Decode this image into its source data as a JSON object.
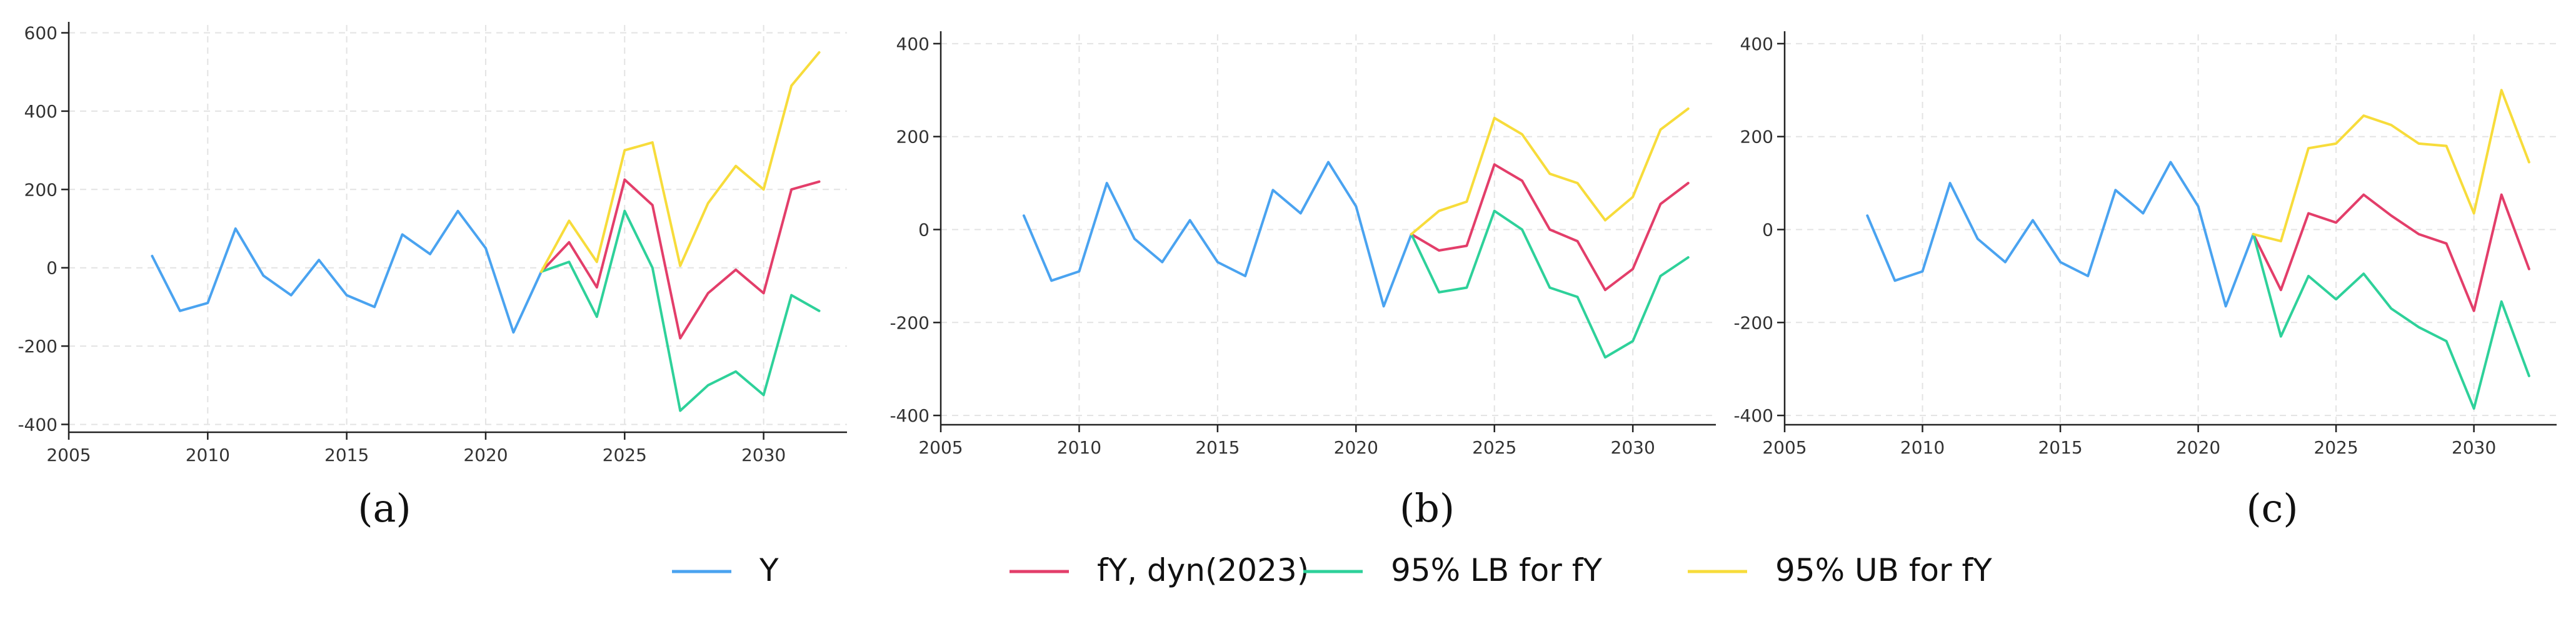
{
  "legend": [
    {
      "label": "Y",
      "color": "#4aa3f0"
    },
    {
      "label": "fY, dyn(2023)",
      "color": "#e33e6a"
    },
    {
      "label": "95% LB for fY",
      "color": "#2ed19a"
    },
    {
      "label": "95% UB for fY",
      "color": "#f7dc3b"
    }
  ],
  "chart_data": [
    {
      "type": "line",
      "caption": "(a)",
      "xlim": [
        2005,
        2033
      ],
      "ylim": [
        -420,
        620
      ],
      "x_ticks": [
        "2005",
        "2010",
        "2015",
        "2020",
        "2025",
        "2030"
      ],
      "y_ticks": [
        "-400",
        "-200",
        "0",
        "200",
        "400",
        "600"
      ],
      "grid": true,
      "series": [
        {
          "name": "Y",
          "color": "#4aa3f0",
          "x": [
            2008,
            2009,
            2010,
            2011,
            2012,
            2013,
            2014,
            2015,
            2016,
            2017,
            2018,
            2019,
            2020,
            2021,
            2022
          ],
          "y": [
            30,
            -110,
            -90,
            100,
            -20,
            -70,
            20,
            -70,
            -100,
            85,
            35,
            145,
            50,
            -165,
            -10
          ]
        },
        {
          "name": "fY, dyn(2023)",
          "color": "#e33e6a",
          "x": [
            2022,
            2023,
            2024,
            2025,
            2026,
            2027,
            2028,
            2029,
            2030,
            2031,
            2032
          ],
          "y": [
            -10,
            65,
            -50,
            225,
            160,
            -180,
            -65,
            -5,
            -65,
            200,
            220
          ]
        },
        {
          "name": "95% LB for fY",
          "color": "#2ed19a",
          "x": [
            2022,
            2023,
            2024,
            2025,
            2026,
            2027,
            2028,
            2029,
            2030,
            2031,
            2032
          ],
          "y": [
            -10,
            15,
            -125,
            145,
            0,
            -365,
            -300,
            -265,
            -325,
            -70,
            -110
          ]
        },
        {
          "name": "95% UB for fY",
          "color": "#f7dc3b",
          "x": [
            2022,
            2023,
            2024,
            2025,
            2026,
            2027,
            2028,
            2029,
            2030,
            2031,
            2032
          ],
          "y": [
            -10,
            120,
            15,
            300,
            320,
            5,
            165,
            260,
            200,
            465,
            550
          ]
        }
      ]
    },
    {
      "type": "line",
      "caption": "(b)",
      "xlim": [
        2005,
        2033
      ],
      "ylim": [
        -420,
        420
      ],
      "x_ticks": [
        "2005",
        "2010",
        "2015",
        "2020",
        "2025",
        "2030"
      ],
      "y_ticks": [
        "-400",
        "-200",
        "0",
        "200",
        "400"
      ],
      "grid": true,
      "series": [
        {
          "name": "Y",
          "color": "#4aa3f0",
          "x": [
            2008,
            2009,
            2010,
            2011,
            2012,
            2013,
            2014,
            2015,
            2016,
            2017,
            2018,
            2019,
            2020,
            2021,
            2022
          ],
          "y": [
            30,
            -110,
            -90,
            100,
            -20,
            -70,
            20,
            -70,
            -100,
            85,
            35,
            145,
            50,
            -165,
            -10
          ]
        },
        {
          "name": "fY, dyn(2023)",
          "color": "#e33e6a",
          "x": [
            2022,
            2023,
            2024,
            2025,
            2026,
            2027,
            2028,
            2029,
            2030,
            2031,
            2032
          ],
          "y": [
            -10,
            -45,
            -35,
            140,
            105,
            0,
            -25,
            -130,
            -85,
            55,
            100
          ]
        },
        {
          "name": "95% LB for fY",
          "color": "#2ed19a",
          "x": [
            2022,
            2023,
            2024,
            2025,
            2026,
            2027,
            2028,
            2029,
            2030,
            2031,
            2032
          ],
          "y": [
            -10,
            -135,
            -125,
            40,
            0,
            -125,
            -145,
            -275,
            -240,
            -100,
            -60
          ]
        },
        {
          "name": "95% UB for fY",
          "color": "#f7dc3b",
          "x": [
            2022,
            2023,
            2024,
            2025,
            2026,
            2027,
            2028,
            2029,
            2030,
            2031,
            2032
          ],
          "y": [
            -10,
            40,
            60,
            240,
            205,
            120,
            100,
            20,
            70,
            215,
            260
          ]
        }
      ]
    },
    {
      "type": "line",
      "caption": "(c)",
      "xlim": [
        2005,
        2033
      ],
      "ylim": [
        -420,
        420
      ],
      "x_ticks": [
        "2005",
        "2010",
        "2015",
        "2020",
        "2025",
        "2030"
      ],
      "y_ticks": [
        "-400",
        "-200",
        "0",
        "200",
        "400"
      ],
      "grid": true,
      "series": [
        {
          "name": "Y",
          "color": "#4aa3f0",
          "x": [
            2008,
            2009,
            2010,
            2011,
            2012,
            2013,
            2014,
            2015,
            2016,
            2017,
            2018,
            2019,
            2020,
            2021,
            2022
          ],
          "y": [
            30,
            -110,
            -90,
            100,
            -20,
            -70,
            20,
            -70,
            -100,
            85,
            35,
            145,
            50,
            -165,
            -10
          ]
        },
        {
          "name": "fY, dyn(2023)",
          "color": "#e33e6a",
          "x": [
            2022,
            2023,
            2024,
            2025,
            2026,
            2027,
            2028,
            2029,
            2030,
            2031,
            2032
          ],
          "y": [
            -10,
            -130,
            35,
            15,
            75,
            30,
            -10,
            -30,
            -175,
            75,
            -85
          ]
        },
        {
          "name": "95% LB for fY",
          "color": "#2ed19a",
          "x": [
            2022,
            2023,
            2024,
            2025,
            2026,
            2027,
            2028,
            2029,
            2030,
            2031,
            2032
          ],
          "y": [
            -10,
            -230,
            -100,
            -150,
            -95,
            -170,
            -210,
            -240,
            -385,
            -155,
            -315
          ]
        },
        {
          "name": "95% UB for fY",
          "color": "#f7dc3b",
          "x": [
            2022,
            2023,
            2024,
            2025,
            2026,
            2027,
            2028,
            2029,
            2030,
            2031,
            2032
          ],
          "y": [
            -10,
            -25,
            175,
            185,
            245,
            225,
            185,
            180,
            35,
            300,
            145
          ]
        }
      ]
    }
  ]
}
